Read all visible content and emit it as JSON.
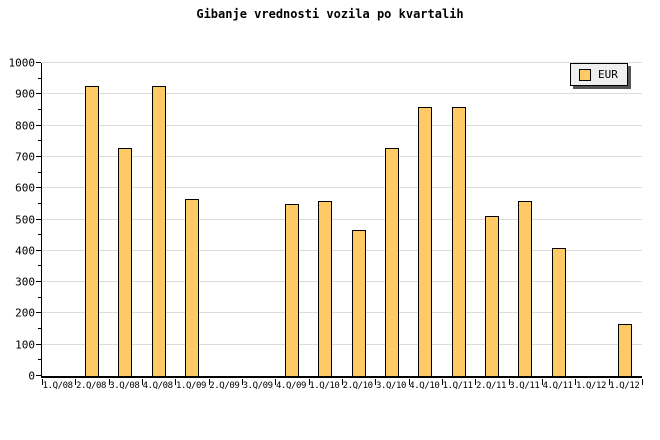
{
  "chart_data": {
    "type": "bar",
    "title": "Gibanje vrednosti vozila po kvartalih",
    "categories": [
      "1.Q/08",
      "2.Q/08",
      "3.Q/08",
      "4.Q/08",
      "1.Q/09",
      "2.Q/09",
      "3.Q/09",
      "4.Q/09",
      "1.Q/10",
      "2.Q/10",
      "3.Q/10",
      "4.Q/10",
      "1.Q/11",
      "2.Q/11",
      "3.Q/11",
      "4.Q/11",
      "1.Q/12",
      "1.Q/12"
    ],
    "series": [
      {
        "name": "EUR",
        "values": [
          null,
          925,
          730,
          925,
          565,
          null,
          null,
          550,
          560,
          465,
          730,
          860,
          860,
          510,
          560,
          410,
          null,
          165
        ]
      }
    ],
    "xlabel": "",
    "ylabel": "",
    "ylim": [
      0,
      1000
    ],
    "yticks": [
      0,
      100,
      200,
      300,
      400,
      500,
      600,
      700,
      800,
      900,
      1000
    ],
    "y_minor_step": 50,
    "grid": "horizontal",
    "legend_position": "top-right",
    "legend_labels": [
      "EUR"
    ],
    "colors": {
      "bar_fill": "#FFC966",
      "bar_border": "#000000",
      "gridline": "#DCDCDC",
      "axis": "#000000",
      "legend_bg": "#EFEFEF",
      "legend_shadow": "#555555",
      "background": "#FFFFFF",
      "text": "#000000"
    }
  }
}
